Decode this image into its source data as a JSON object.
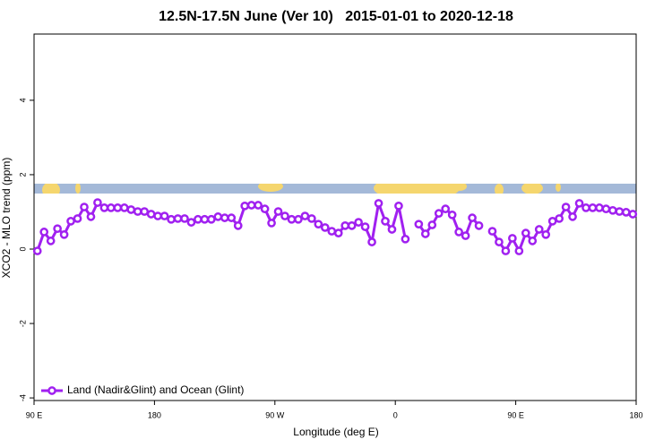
{
  "chart_data": {
    "type": "line",
    "title": "12.5N-17.5N June (Ver 10)   2015-01-01 to 2020-12-18",
    "x_label": "Longitude (deg E)",
    "y_label": "XCO2 - MLO trend (ppm)",
    "xlim": [
      90,
      540
    ],
    "ylim": [
      -4.07,
      5.78
    ],
    "xticks": [
      {
        "value": 90,
        "label": "90 E"
      },
      {
        "value": 180,
        "label": "180"
      },
      {
        "value": 270,
        "label": "90 W"
      },
      {
        "value": 360,
        "label": "0"
      },
      {
        "value": 450,
        "label": "90 E"
      },
      {
        "value": 540,
        "label": "180"
      }
    ],
    "yticks": [
      -4,
      -2,
      0,
      2,
      4
    ],
    "legend_position": "bottom-left",
    "x": [
      92.5,
      97.5,
      102.5,
      107.5,
      112.5,
      117.5,
      122.5,
      127.5,
      132.5,
      137.5,
      142.5,
      147.5,
      152.5,
      157.5,
      162.5,
      167.5,
      172.5,
      177.5,
      182.5,
      187.5,
      192.5,
      197.5,
      202.5,
      207.5,
      212.5,
      217.5,
      222.5,
      227.5,
      232.5,
      237.5,
      242.5,
      247.5,
      252.5,
      257.5,
      262.5,
      267.5,
      272.5,
      277.5,
      282.5,
      287.5,
      292.5,
      297.5,
      302.5,
      307.5,
      312.5,
      317.5,
      322.5,
      327.5,
      332.5,
      337.5,
      342.5,
      347.5,
      352.5,
      357.5,
      362.5,
      367.5,
      372.5,
      377.5,
      382.5,
      387.5,
      392.5,
      397.5,
      402.5,
      407.5,
      412.5,
      417.5,
      422.5,
      427.5,
      432.5,
      437.5,
      442.5,
      447.5,
      452.5,
      457.5,
      462.5,
      467.5,
      472.5,
      477.5,
      482.5,
      487.5,
      492.5,
      497.5,
      502.5,
      507.5,
      512.5,
      517.5,
      522.5,
      527.5,
      532.5,
      537.5
    ],
    "series": [
      {
        "name": "Land (Nadir&Glint) and Ocean (Glint)",
        "color": "#a020f0",
        "values": [
          -0.05,
          0.46,
          0.22,
          0.55,
          0.39,
          0.75,
          0.82,
          1.13,
          0.87,
          1.25,
          1.11,
          1.11,
          1.11,
          1.11,
          1.06,
          1.01,
          1.01,
          0.94,
          0.89,
          0.89,
          0.8,
          0.82,
          0.82,
          0.72,
          0.8,
          0.8,
          0.8,
          0.87,
          0.84,
          0.84,
          0.63,
          1.16,
          1.18,
          1.18,
          1.08,
          0.7,
          1.01,
          0.89,
          0.8,
          0.8,
          0.89,
          0.82,
          0.67,
          0.58,
          0.48,
          0.43,
          0.63,
          0.63,
          0.72,
          0.6,
          0.19,
          1.23,
          0.75,
          0.53,
          1.16,
          0.27,
          null,
          0.67,
          0.41,
          0.65,
          0.96,
          1.08,
          0.92,
          0.46,
          0.36,
          0.84,
          0.63,
          null,
          0.48,
          0.19,
          -0.05,
          0.29,
          -0.05,
          0.43,
          0.22,
          0.53,
          0.39,
          0.75,
          0.82,
          1.13,
          0.87,
          1.23,
          1.11,
          1.11,
          1.11,
          1.08,
          1.04,
          1.01,
          0.99,
          0.94
        ]
      }
    ]
  }
}
